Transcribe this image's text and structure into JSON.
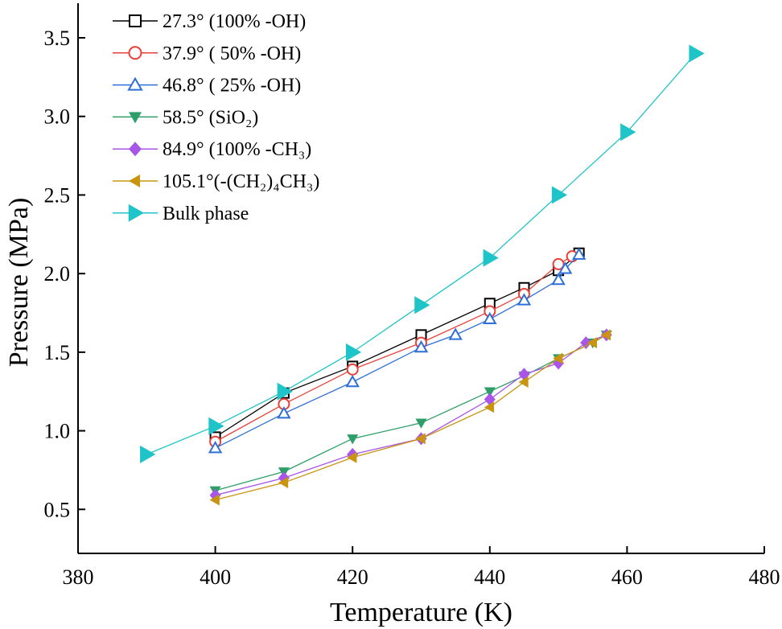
{
  "chart_data": {
    "type": "line",
    "xlabel": "Temperature  (K)",
    "ylabel": "Pressure (MPa)",
    "xlim": [
      380,
      480
    ],
    "ylim": [
      0.22,
      3.72
    ],
    "xticks": [
      380,
      400,
      420,
      440,
      460,
      480
    ],
    "yticks": [
      0.5,
      1.0,
      1.5,
      2.0,
      2.5,
      3.0,
      3.5
    ],
    "xtick_labels": [
      "380",
      "400",
      "420",
      "440",
      "460",
      "480"
    ],
    "ytick_labels": [
      "0.5",
      "1.0",
      "1.5",
      "2.0",
      "2.5",
      "3.0",
      "3.5"
    ],
    "grid": false,
    "legend_position": "top-left",
    "series": [
      {
        "name": "27.3°  (100% -OH)",
        "color": "#000000",
        "marker": "square-open",
        "x": [
          400,
          410,
          420,
          430,
          440,
          445,
          450,
          453
        ],
        "y": [
          0.96,
          1.24,
          1.41,
          1.61,
          1.81,
          1.91,
          2.02,
          2.13
        ]
      },
      {
        "name": "37.9°  ( 50% -OH)",
        "color": "#e8413a",
        "marker": "circle-open",
        "x": [
          400,
          410,
          420,
          430,
          440,
          445,
          450,
          452
        ],
        "y": [
          0.93,
          1.17,
          1.39,
          1.56,
          1.76,
          1.87,
          2.06,
          2.11
        ]
      },
      {
        "name": "46.8°  ( 25% -OH)",
        "color": "#2e6fd8",
        "marker": "triangle-up-open",
        "x": [
          400,
          410,
          420,
          430,
          435,
          440,
          445,
          450,
          451,
          453
        ],
        "y": [
          0.89,
          1.11,
          1.31,
          1.53,
          1.61,
          1.71,
          1.83,
          1.96,
          2.03,
          2.12
        ]
      },
      {
        "name": "58.5°  (SiO₂)",
        "color": "#2e9e68",
        "marker": "triangle-down-filled",
        "x": [
          400,
          410,
          420,
          430,
          440,
          445,
          450,
          455,
          457
        ],
        "y": [
          0.62,
          0.74,
          0.95,
          1.05,
          1.25,
          1.35,
          1.46,
          1.56,
          1.61
        ]
      },
      {
        "name": "84.9°  (100% -CH₃)",
        "color": "#a855e8",
        "marker": "diamond-filled",
        "x": [
          400,
          410,
          420,
          430,
          440,
          445,
          450,
          454,
          457
        ],
        "y": [
          0.59,
          0.7,
          0.85,
          0.95,
          1.2,
          1.36,
          1.43,
          1.56,
          1.61
        ]
      },
      {
        "name": "105.1°(-(CH₂)₄CH₃)",
        "color": "#c99510",
        "marker": "triangle-left-filled",
        "x": [
          400,
          410,
          420,
          430,
          440,
          445,
          450,
          455,
          457
        ],
        "y": [
          0.56,
          0.67,
          0.83,
          0.95,
          1.15,
          1.31,
          1.46,
          1.56,
          1.61
        ]
      },
      {
        "name": "Bulk phase",
        "color": "#1ec4c8",
        "marker": "triangle-right-filled",
        "x": [
          390,
          400,
          410,
          420,
          430,
          440,
          450,
          460,
          470
        ],
        "y": [
          0.85,
          1.03,
          1.25,
          1.5,
          1.8,
          2.1,
          2.5,
          2.9,
          3.4
        ]
      }
    ]
  }
}
